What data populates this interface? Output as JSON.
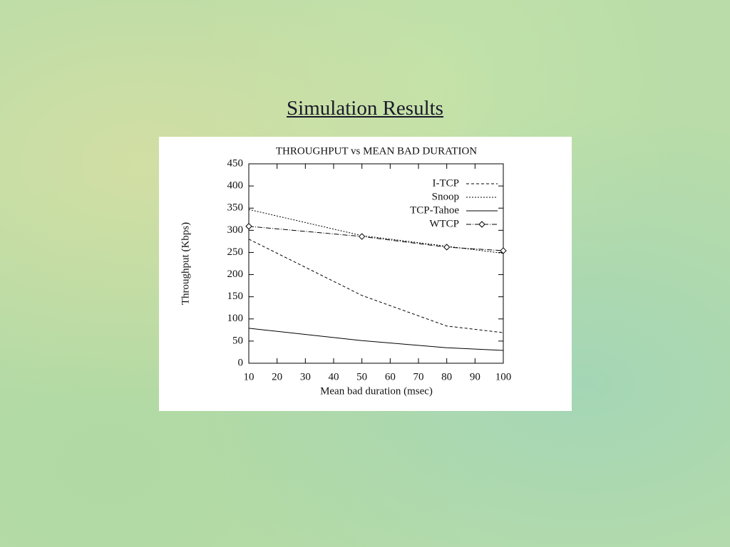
{
  "slide_title": "Simulation Results",
  "chart_data": {
    "type": "line",
    "title": "THROUGHPUT vs MEAN BAD DURATION",
    "x_label": "Mean bad duration (msec)",
    "y_label": "Throughput (Kbps)",
    "x": [
      10,
      50,
      80,
      100
    ],
    "series": [
      {
        "name": "I-TCP",
        "color": "#000000",
        "values": [
          280,
          153,
          84,
          69
        ]
      },
      {
        "name": "Snoop",
        "color": "#000000",
        "values": [
          347,
          288,
          264,
          248
        ]
      },
      {
        "name": "TCP-Tahoe",
        "color": "#000000",
        "values": [
          79,
          51,
          35,
          29
        ]
      },
      {
        "name": "WTCP",
        "color": "#000000",
        "marker": "diamond",
        "values": [
          309,
          286,
          262,
          254
        ]
      }
    ],
    "xlim": [
      10,
      100
    ],
    "xticks": [
      10,
      20,
      30,
      40,
      50,
      60,
      70,
      80,
      90,
      100
    ],
    "ylim": [
      0,
      450
    ],
    "yticks": [
      0,
      50,
      100,
      150,
      200,
      250,
      300,
      350,
      400,
      450
    ],
    "legend": "upper right"
  }
}
